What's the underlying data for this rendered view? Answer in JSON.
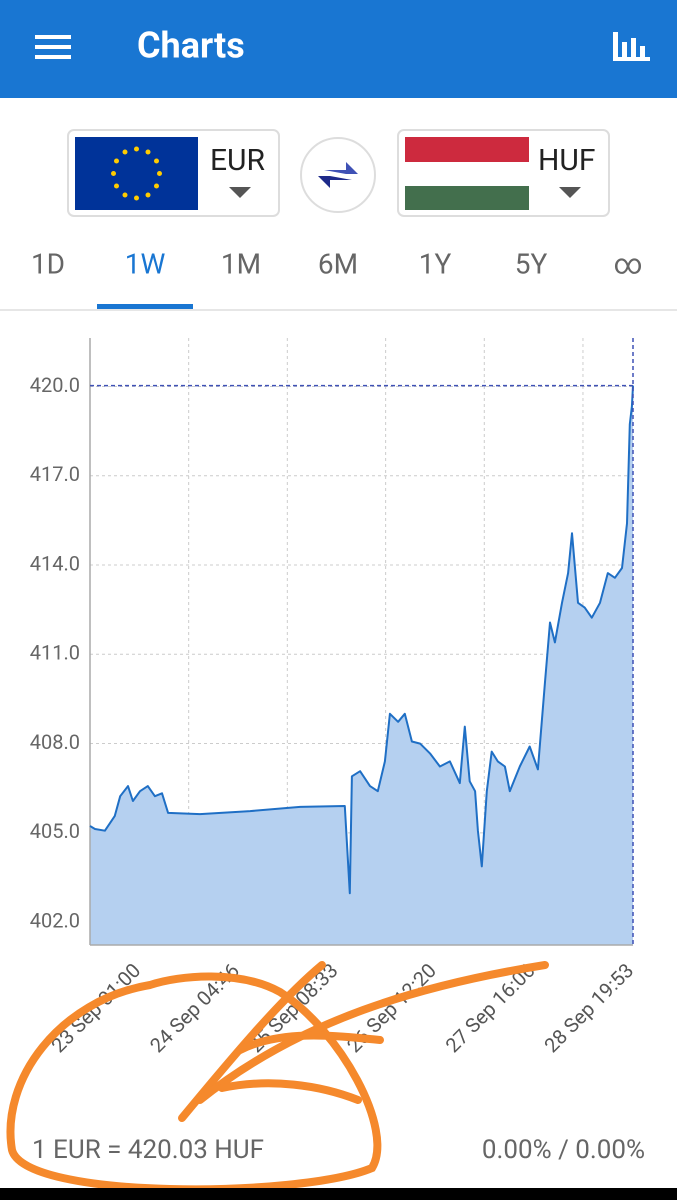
{
  "header": {
    "title": "Charts"
  },
  "from": {
    "code": "EUR"
  },
  "to": {
    "code": "HUF"
  },
  "tabs": [
    "1D",
    "1W",
    "1M",
    "6M",
    "1Y",
    "5Y",
    "∞"
  ],
  "active_tab": 1,
  "chart_data": {
    "type": "area",
    "color": "#1f6fc5",
    "fill_color": "#b5d0f0",
    "grid": true,
    "x": [
      0,
      1.4,
      4.2,
      7.0,
      8.5,
      10.7,
      12.1,
      14.1,
      16.3,
      18.3,
      20.3,
      22.0,
      31.0,
      45.1,
      59.2,
      71.8,
      73.2,
      73.8,
      76.1,
      78.9,
      81.1,
      83.1,
      84.5,
      86.8,
      88.7,
      90.7,
      93.0,
      95.8,
      98.6,
      101.4,
      104.2,
      105.6,
      107.0,
      108.5,
      109.3,
      110.4,
      111.8,
      113.2,
      114.9,
      116.9,
      118.3,
      121.1,
      123.9,
      126.2,
      128.2,
      129.6,
      131.0,
      133.0,
      134.7,
      135.8,
      137.5,
      139.4,
      141.4,
      143.7,
      145.9,
      147.9,
      149.9,
      151.3,
      152.1,
      152.7,
      153.0
    ],
    "values": [
      405.23,
      405.13,
      405.07,
      405.57,
      406.23,
      406.57,
      406.07,
      406.4,
      406.57,
      406.23,
      406.33,
      405.67,
      405.63,
      405.73,
      405.87,
      405.9,
      402.97,
      406.9,
      407.07,
      406.57,
      406.4,
      407.4,
      409.0,
      408.73,
      409.0,
      408.07,
      408.0,
      407.67,
      407.23,
      407.4,
      406.67,
      408.57,
      406.73,
      406.4,
      405.07,
      403.87,
      406.4,
      407.73,
      407.4,
      407.23,
      406.4,
      407.23,
      407.9,
      407.13,
      410.07,
      412.07,
      411.4,
      412.73,
      413.73,
      415.07,
      412.73,
      412.57,
      412.23,
      412.73,
      413.73,
      413.57,
      413.9,
      415.4,
      418.73,
      419.33,
      420.03
    ],
    "xlim": [
      0,
      153
    ],
    "xticks": [
      {
        "value": 0,
        "label": "23 Sep 01:00"
      },
      {
        "value": 27.8,
        "label": "24 Sep 04:46"
      },
      {
        "value": 55.6,
        "label": "25 Sep 08:33"
      },
      {
        "value": 83.3,
        "label": "26 Sep 12:20"
      },
      {
        "value": 111.1,
        "label": "27 Sep 16:06"
      },
      {
        "value": 138.9,
        "label": "28 Sep 19:53"
      }
    ],
    "ylim": [
      401.23,
      421.63
    ],
    "yticks": [
      {
        "value": 402,
        "label": "402.0"
      },
      {
        "value": 405,
        "label": "405.0"
      },
      {
        "value": 408,
        "label": "408.0"
      },
      {
        "value": 411,
        "label": "411.0"
      },
      {
        "value": 414,
        "label": "414.0"
      },
      {
        "value": 417,
        "label": "417.0"
      },
      {
        "value": 420,
        "label": "420.0"
      }
    ]
  },
  "footer": {
    "rate": "1 EUR = 420.03 HUF",
    "change": "0.00% / 0.00%"
  }
}
